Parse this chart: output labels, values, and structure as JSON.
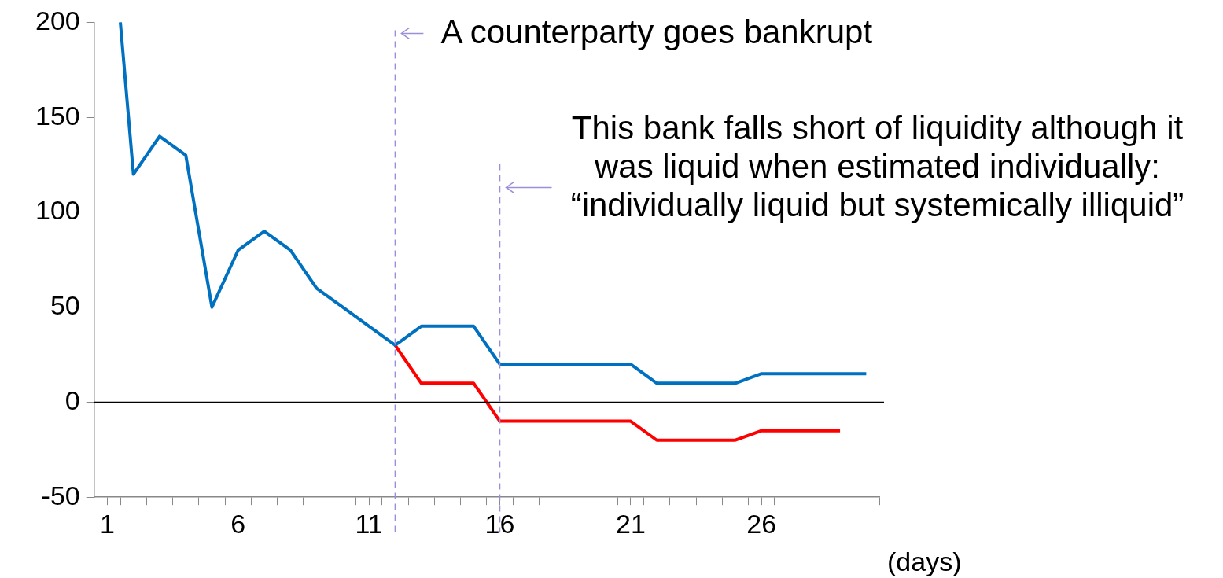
{
  "chart_data": {
    "type": "line",
    "xlabel": "(days)",
    "xlim": [
      0.5,
      30.5
    ],
    "xticks": [
      {
        "value": 0.5,
        "label": null
      },
      1,
      {
        "value": 1.5,
        "label": null
      },
      {
        "value": 2.5,
        "label": null
      },
      {
        "value": 3.5,
        "label": null
      },
      {
        "value": 4.5,
        "label": null
      },
      {
        "value": 5.5,
        "label": null
      },
      6,
      {
        "value": 6.5,
        "label": null
      },
      {
        "value": 7.5,
        "label": null
      },
      {
        "value": 8.5,
        "label": null
      },
      {
        "value": 9.5,
        "label": null
      },
      {
        "value": 10.5,
        "label": null
      },
      11,
      {
        "value": 11.5,
        "label": null
      },
      {
        "value": 12.5,
        "label": null
      },
      {
        "value": 13.5,
        "label": null
      },
      {
        "value": 14.5,
        "label": null
      },
      {
        "value": 15.5,
        "label": null
      },
      16,
      {
        "value": 16.5,
        "label": null
      },
      {
        "value": 17.5,
        "label": null
      },
      {
        "value": 18.5,
        "label": null
      },
      {
        "value": 19.5,
        "label": null
      },
      {
        "value": 20.5,
        "label": null
      },
      21,
      {
        "value": 21.5,
        "label": null
      },
      {
        "value": 22.5,
        "label": null
      },
      {
        "value": 23.5,
        "label": null
      },
      {
        "value": 24.5,
        "label": null
      },
      {
        "value": 25.5,
        "label": null
      },
      26,
      {
        "value": 26.5,
        "label": null
      },
      {
        "value": 27.5,
        "label": null
      },
      {
        "value": 28.5,
        "label": null
      },
      {
        "value": 29.5,
        "label": null
      },
      {
        "value": 30.5,
        "label": null
      }
    ],
    "ylim": [
      -50,
      200
    ],
    "yticks": [
      -50,
      0,
      50,
      100,
      150,
      200
    ],
    "series": [
      {
        "color": "#0070c0",
        "x": [
          1.5,
          2,
          3,
          4,
          5,
          6,
          7,
          8,
          9,
          10,
          11,
          12,
          13,
          14,
          15,
          16,
          17,
          18,
          19,
          20,
          21,
          22,
          23,
          24,
          25,
          26,
          27,
          28,
          29,
          30
        ],
        "values": [
          200,
          120,
          140,
          130,
          50,
          80,
          90,
          80,
          60,
          50,
          40,
          30,
          40,
          40,
          40,
          20,
          20,
          20,
          20,
          20,
          20,
          10,
          10,
          10,
          10,
          15,
          15,
          15,
          15,
          15
        ]
      },
      {
        "color": "#ff0000",
        "x": [
          12,
          13,
          14,
          15,
          16,
          17,
          18,
          19,
          20,
          21,
          22,
          23,
          24,
          25,
          26,
          27,
          28,
          29
        ],
        "values": [
          30,
          10,
          10,
          10,
          -10,
          -10,
          -10,
          -10,
          -10,
          -10,
          -20,
          -20,
          -20,
          -20,
          -15,
          -15,
          -15,
          -15
        ]
      }
    ],
    "ref_lines": [
      {
        "axis": "y",
        "value": 0,
        "color": "#000000",
        "line_style": "solid"
      },
      {
        "axis": "x",
        "value": 12,
        "label": "A counterparty goes bankrupt",
        "color": "#9a8fd8",
        "line_style": "dashed"
      },
      {
        "axis": "x",
        "value": 16,
        "label": "This bank falls short of liquidity although it was liquid when estimated individually: “individually liquid but systemically illiquid”",
        "color": "#9a8fd8",
        "line_style": "dashed"
      }
    ],
    "marker": "none",
    "line_style": "solid",
    "legend": false
  }
}
